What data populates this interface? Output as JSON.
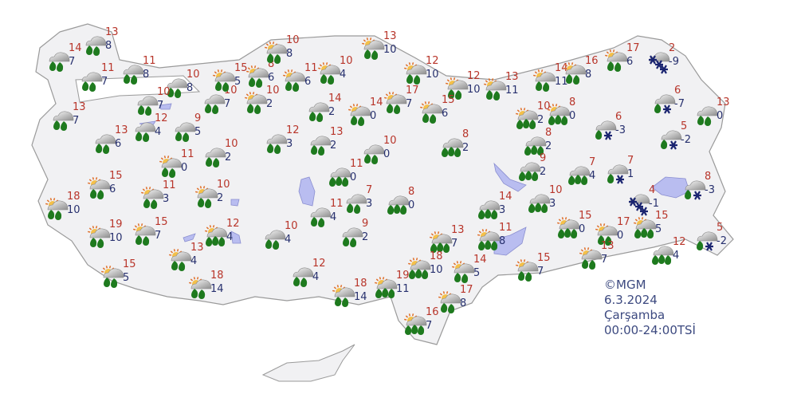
{
  "info": {
    "copyright": "©MGM",
    "date": "6.3.2024",
    "day": "Çarşamba",
    "period": "00:00-24:00TSİ"
  },
  "colors": {
    "max_temp": "#b8352a",
    "min_temp": "#27306e",
    "land": "#f1f1f3",
    "water": "#b9bdf0",
    "rain_drop": "#1e7a1e",
    "snow": "#1a2470"
  },
  "stations": [
    {
      "max": "14",
      "min": "7",
      "icon": "rain"
    },
    {
      "max": "13",
      "min": "8",
      "icon": "rain"
    },
    {
      "max": "11",
      "min": "7",
      "icon": "rain"
    },
    {
      "max": "11",
      "min": "8",
      "icon": "rain"
    },
    {
      "max": "10",
      "min": "8",
      "icon": "rain"
    },
    {
      "max": "10",
      "min": "7",
      "icon": "rain"
    },
    {
      "max": "13",
      "min": "7",
      "icon": "rain"
    },
    {
      "max": "13",
      "min": "6",
      "icon": "rain"
    },
    {
      "max": "12",
      "min": "4",
      "icon": "rain"
    },
    {
      "max": "9",
      "min": "5",
      "icon": "rain"
    },
    {
      "max": "10",
      "min": "7",
      "icon": "rain"
    },
    {
      "max": "15",
      "min": "5",
      "icon": "partly-rain"
    },
    {
      "max": "8",
      "min": "6",
      "icon": "partly-rain"
    },
    {
      "max": "11",
      "min": "6",
      "icon": "partly-rain"
    },
    {
      "max": "10",
      "min": "4",
      "icon": "partly-rain"
    },
    {
      "max": "10",
      "min": "8",
      "icon": "partly-rain"
    },
    {
      "max": "13",
      "min": "10",
      "icon": "partly-rain"
    },
    {
      "max": "10",
      "min": "2",
      "icon": "partly-rain"
    },
    {
      "max": "14",
      "min": "2",
      "icon": "rain"
    },
    {
      "max": "14",
      "min": "0",
      "icon": "partly-rain"
    },
    {
      "max": "17",
      "min": "7",
      "icon": "partly-rain"
    },
    {
      "max": "12",
      "min": "10",
      "icon": "partly-rain"
    },
    {
      "max": "12",
      "min": "10",
      "icon": "partly-rain"
    },
    {
      "max": "13",
      "min": "11",
      "icon": "partly-rain"
    },
    {
      "max": "14",
      "min": "11",
      "icon": "partly-rain"
    },
    {
      "max": "16",
      "min": "8",
      "icon": "partly-rain"
    },
    {
      "max": "17",
      "min": "6",
      "icon": "partly-rain"
    },
    {
      "max": "2",
      "min": "-9",
      "icon": "snow"
    },
    {
      "max": "6",
      "min": "-7",
      "icon": "sleet"
    },
    {
      "max": "13",
      "min": "0",
      "icon": "rain"
    },
    {
      "max": "6",
      "min": "-3",
      "icon": "sleet"
    },
    {
      "max": "5",
      "min": "-2",
      "icon": "sleet"
    },
    {
      "max": "8",
      "min": "0",
      "icon": "partly-heavy-rain"
    },
    {
      "max": "10",
      "min": "2",
      "icon": "partly-heavy-rain"
    },
    {
      "max": "15",
      "min": "6",
      "icon": "partly-rain"
    },
    {
      "max": "12",
      "min": "3",
      "icon": "rain"
    },
    {
      "max": "13",
      "min": "2",
      "icon": "rain"
    },
    {
      "max": "10",
      "min": "0",
      "icon": "rain"
    },
    {
      "max": "8",
      "min": "2",
      "icon": "heavy-rain"
    },
    {
      "max": "8",
      "min": "2",
      "icon": "heavy-rain"
    },
    {
      "max": "11",
      "min": "0",
      "icon": "partly-rain"
    },
    {
      "max": "10",
      "min": "2",
      "icon": "rain"
    },
    {
      "max": "15",
      "min": "6",
      "icon": "partly-rain"
    },
    {
      "max": "18",
      "min": "10",
      "icon": "partly-rain"
    },
    {
      "max": "11",
      "min": "3",
      "icon": "partly-rain"
    },
    {
      "max": "10",
      "min": "2",
      "icon": "partly-rain"
    },
    {
      "max": "11",
      "min": "0",
      "icon": "heavy-rain"
    },
    {
      "max": "7",
      "min": "3",
      "icon": "rain"
    },
    {
      "max": "8",
      "min": "0",
      "icon": "heavy-rain"
    },
    {
      "max": "9",
      "min": "2",
      "icon": "heavy-rain"
    },
    {
      "max": "7",
      "min": "4",
      "icon": "heavy-rain"
    },
    {
      "max": "7",
      "min": "1",
      "icon": "sleet"
    },
    {
      "max": "4",
      "min": "-1",
      "icon": "snow"
    },
    {
      "max": "8",
      "min": "-3",
      "icon": "sleet"
    },
    {
      "max": "14",
      "min": "3",
      "icon": "heavy-rain"
    },
    {
      "max": "10",
      "min": "3",
      "icon": "heavy-rain"
    },
    {
      "max": "19",
      "min": "10",
      "icon": "partly-rain"
    },
    {
      "max": "15",
      "min": "7",
      "icon": "partly-rain"
    },
    {
      "max": "12",
      "min": "4",
      "icon": "partly-heavy-rain"
    },
    {
      "max": "10",
      "min": "4",
      "icon": "rain"
    },
    {
      "max": "9",
      "min": "2",
      "icon": "rain"
    },
    {
      "max": "11",
      "min": "4",
      "icon": "rain"
    },
    {
      "max": "13",
      "min": "7",
      "icon": "partly-heavy-rain"
    },
    {
      "max": "11",
      "min": "8",
      "icon": "partly-heavy-rain"
    },
    {
      "max": "15",
      "min": "0",
      "icon": "partly-heavy-rain"
    },
    {
      "max": "17",
      "min": "0",
      "icon": "partly-rain"
    },
    {
      "max": "15",
      "min": "5",
      "icon": "partly-heavy-rain"
    },
    {
      "max": "5",
      "min": "-2",
      "icon": "sleet"
    },
    {
      "max": "12",
      "min": "4",
      "icon": "heavy-rain"
    },
    {
      "max": "13",
      "min": "7",
      "icon": "partly-rain"
    },
    {
      "max": "15",
      "min": "7",
      "icon": "partly-rain"
    },
    {
      "max": "14",
      "min": "5",
      "icon": "partly-rain"
    },
    {
      "max": "18",
      "min": "10",
      "icon": "partly-heavy-rain"
    },
    {
      "max": "13",
      "min": "4",
      "icon": "partly-rain"
    },
    {
      "max": "15",
      "min": "5",
      "icon": "partly-rain"
    },
    {
      "max": "18",
      "min": "14",
      "icon": "partly-rain"
    },
    {
      "max": "12",
      "min": "4",
      "icon": "rain"
    },
    {
      "max": "18",
      "min": "14",
      "icon": "partly-rain"
    },
    {
      "max": "19",
      "min": "11",
      "icon": "partly-heavy-rain"
    },
    {
      "max": "17",
      "min": "8",
      "icon": "partly-rain"
    },
    {
      "max": "16",
      "min": "7",
      "icon": "partly-heavy-rain"
    }
  ]
}
